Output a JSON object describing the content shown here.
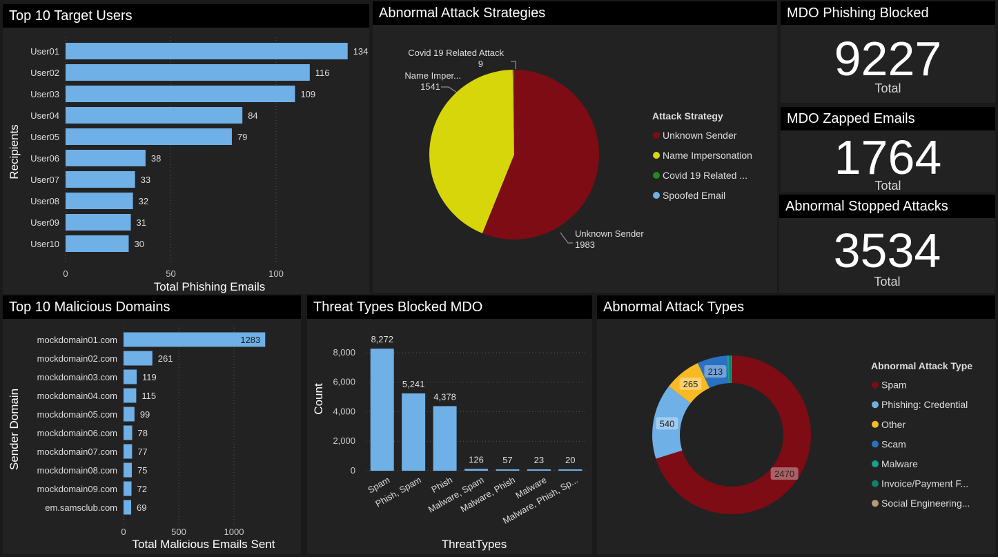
{
  "panels": {
    "target_users": {
      "title": "Top 10 Target Users",
      "chart_data": {
        "type": "bar",
        "orientation": "horizontal",
        "categories": [
          "User01",
          "User02",
          "User03",
          "User04",
          "User05",
          "User06",
          "User07",
          "User08",
          "User09",
          "User10"
        ],
        "values": [
          134,
          116,
          109,
          84,
          79,
          38,
          33,
          32,
          31,
          30
        ],
        "xlabel": "Total Phishing Emails",
        "ylabel": "Recipients",
        "xticks": [
          0,
          50,
          100
        ],
        "xlim": [
          0,
          140
        ],
        "color": "#6fb0e6"
      }
    },
    "attack_strategies": {
      "title": "Abnormal Attack Strategies",
      "chart_data": {
        "type": "pie",
        "legend_title": "Attack Strategy",
        "legend_position": "right",
        "slices": [
          {
            "name": "Unknown Sender",
            "legend": "Unknown Sender",
            "label": "Unknown Sender",
            "value": 1983,
            "color": "#7d0c14"
          },
          {
            "name": "Name Impersonation",
            "legend": "Name Impersonation",
            "label": "Name Imper...",
            "value": 1541,
            "color": "#d6d60b"
          },
          {
            "name": "Covid 19 Related Attack",
            "legend": "Covid 19 Related ...",
            "label": "Covid 19 Related Attack",
            "value": 9,
            "color": "#1e8c1e"
          },
          {
            "name": "Spoofed Email",
            "legend": "Spoofed Email",
            "label": "",
            "value": 1,
            "color": "#6fb0e6"
          }
        ]
      }
    },
    "kpis": [
      {
        "title": "MDO Phishing Blocked",
        "value": "9227",
        "subtitle": "Total"
      },
      {
        "title": "MDO Zapped Emails",
        "value": "1764",
        "subtitle": "Total"
      },
      {
        "title": "Abnormal Stopped Attacks",
        "value": "3534",
        "subtitle": "Total"
      }
    ],
    "malicious_domains": {
      "title": "Top 10 Malicious Domains",
      "chart_data": {
        "type": "bar",
        "orientation": "horizontal",
        "categories": [
          "mockdomain01.com",
          "mockdomain02.com",
          "mockdomain03.com",
          "mockdomain04.com",
          "mockdomain05.com",
          "mockdomain06.com",
          "mockdomain07.com",
          "mockdomain08.com",
          "mockdomain09.com",
          "em.samsclub.com"
        ],
        "values": [
          1283,
          261,
          119,
          115,
          99,
          78,
          77,
          75,
          72,
          69
        ],
        "xlabel": "Total Malicious Emails Sent",
        "ylabel": "Sender Domain",
        "xticks": [
          0,
          500,
          1000
        ],
        "xlim": [
          0,
          1350
        ],
        "color": "#6fb0e6"
      }
    },
    "threat_types": {
      "title": "Threat Types Blocked MDO",
      "chart_data": {
        "type": "bar",
        "orientation": "vertical",
        "categories": [
          "Spam",
          "Phish, Spam",
          "Phish",
          "Malware, Spam",
          "Malware, Phish",
          "Malware",
          "Malware, Phish, Sp..."
        ],
        "values": [
          8272,
          5241,
          4378,
          126,
          57,
          23,
          20
        ],
        "value_labels": [
          "8,272",
          "5,241",
          "4,378",
          "126",
          "57",
          "23",
          "20"
        ],
        "xlabel": "ThreatTypes",
        "ylabel": "Count",
        "yticks": [
          0,
          2000,
          4000,
          6000,
          8000
        ],
        "ytick_labels": [
          "0",
          "2,000",
          "4,000",
          "6,000",
          "8,000"
        ],
        "ylim": [
          0,
          8700
        ],
        "grid": true,
        "color": "#6fb0e6"
      }
    },
    "attack_types": {
      "title": "Abnormal Attack Types",
      "chart_data": {
        "type": "donut",
        "legend_title": "Abnormal Attack Type",
        "legend_position": "right",
        "slices": [
          {
            "name": "Spam",
            "legend": "Spam",
            "value": 2470,
            "color": "#7d0c14",
            "show_label": true
          },
          {
            "name": "Phishing: Credential",
            "legend": "Phishing: Credential",
            "value": 540,
            "color": "#6fb0e6",
            "show_label": true
          },
          {
            "name": "Other",
            "legend": "Other",
            "value": 265,
            "color": "#f7b924",
            "show_label": true
          },
          {
            "name": "Scam",
            "legend": "Scam",
            "value": 213,
            "color": "#2a71c2",
            "show_label": true
          },
          {
            "name": "Malware",
            "legend": "Malware",
            "value": 15,
            "color": "#14a38c",
            "show_label": false
          },
          {
            "name": "Invoice/Payment Fraud",
            "legend": "Invoice/Payment F...",
            "value": 15,
            "color": "#13806b",
            "show_label": false
          },
          {
            "name": "Social Engineering",
            "legend": "Social Engineering...",
            "value": 4,
            "color": "#b49a7d",
            "show_label": false
          }
        ]
      }
    }
  }
}
